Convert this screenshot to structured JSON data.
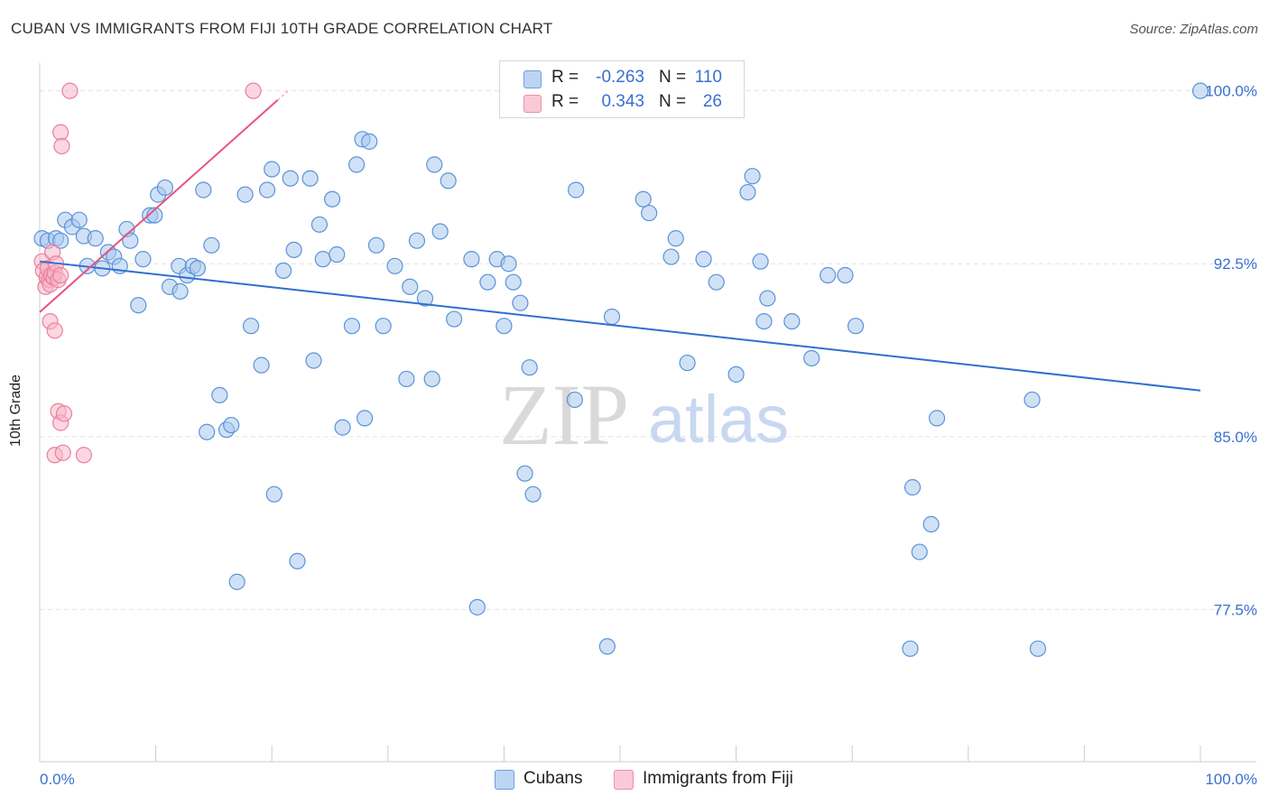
{
  "title": "CUBAN VS IMMIGRANTS FROM FIJI 10TH GRADE CORRELATION CHART",
  "source": "Source: ZipAtlas.com",
  "legend": {
    "cubans": {
      "r_label": "R =",
      "r_value": "-0.263",
      "n_label": "N =",
      "n_value": "110"
    },
    "fiji": {
      "r_label": "R =",
      "r_value": "0.343",
      "n_label": "N =",
      "n_value": "26"
    }
  },
  "bottom_legend": {
    "cubans": "Cubans",
    "fiji": "Immigrants from Fiji"
  },
  "watermark": {
    "zip": "ZIP",
    "atlas": "atlas"
  },
  "colors": {
    "cubans_fill": "#a9c8ef",
    "cubans_stroke": "#5b93d9",
    "cubans_line": "#2f6fcf",
    "fiji_fill": "#f7b6c8",
    "fiji_stroke": "#ea7fa0",
    "fiji_line": "#e8537f",
    "tick_text": "#3a6fd0",
    "grid": "#e3e3e3"
  },
  "chart_data": {
    "type": "scatter",
    "title": "CUBAN VS IMMIGRANTS FROM FIJI 10TH GRADE CORRELATION CHART",
    "xlabel": "",
    "ylabel": "10th Grade",
    "xlim": [
      0,
      100
    ],
    "ylim": [
      70.9,
      101.2
    ],
    "x_tick_labels": [
      "0.0%",
      "100.0%"
    ],
    "y_ticks": [
      77.5,
      85.0,
      92.5,
      100.0
    ],
    "y_tick_labels": [
      "77.5%",
      "85.0%",
      "92.5%",
      "100.0%"
    ],
    "grid": true,
    "legend_position": "top-center",
    "series": [
      {
        "name": "Cubans",
        "r": -0.263,
        "n": 110,
        "trend": {
          "x": [
            0,
            100
          ],
          "y": [
            92.6,
            87.0
          ]
        },
        "points": [
          [
            0.2,
            93.6
          ],
          [
            0.7,
            93.5
          ],
          [
            1.4,
            93.6
          ],
          [
            1.8,
            93.5
          ],
          [
            2.2,
            94.4
          ],
          [
            2.8,
            94.1
          ],
          [
            3.4,
            94.4
          ],
          [
            3.8,
            93.7
          ],
          [
            4.1,
            92.4
          ],
          [
            4.8,
            93.6
          ],
          [
            5.4,
            92.3
          ],
          [
            5.9,
            93.0
          ],
          [
            6.4,
            92.8
          ],
          [
            6.9,
            92.4
          ],
          [
            7.5,
            94.0
          ],
          [
            7.8,
            93.5
          ],
          [
            8.5,
            90.7
          ],
          [
            8.9,
            92.7
          ],
          [
            9.5,
            94.6
          ],
          [
            9.9,
            94.6
          ],
          [
            10.2,
            95.5
          ],
          [
            10.8,
            95.8
          ],
          [
            11.2,
            91.5
          ],
          [
            12.1,
            91.3
          ],
          [
            12.0,
            92.4
          ],
          [
            12.7,
            92.0
          ],
          [
            13.2,
            92.4
          ],
          [
            13.6,
            92.3
          ],
          [
            14.1,
            95.7
          ],
          [
            14.8,
            93.3
          ],
          [
            15.5,
            86.8
          ],
          [
            14.4,
            85.2
          ],
          [
            16.1,
            85.3
          ],
          [
            16.5,
            85.5
          ],
          [
            17.0,
            78.7
          ],
          [
            17.7,
            95.5
          ],
          [
            18.2,
            89.8
          ],
          [
            19.1,
            88.1
          ],
          [
            19.6,
            95.7
          ],
          [
            20.0,
            96.6
          ],
          [
            20.2,
            82.5
          ],
          [
            21.0,
            92.2
          ],
          [
            21.6,
            96.2
          ],
          [
            21.9,
            93.1
          ],
          [
            22.2,
            79.6
          ],
          [
            23.3,
            96.2
          ],
          [
            23.6,
            88.3
          ],
          [
            24.1,
            94.2
          ],
          [
            24.4,
            92.7
          ],
          [
            25.2,
            95.3
          ],
          [
            25.6,
            92.9
          ],
          [
            26.1,
            85.4
          ],
          [
            26.9,
            89.8
          ],
          [
            27.3,
            96.8
          ],
          [
            27.8,
            97.9
          ],
          [
            28.0,
            85.8
          ],
          [
            28.4,
            97.8
          ],
          [
            29.0,
            93.3
          ],
          [
            29.6,
            89.8
          ],
          [
            30.6,
            92.4
          ],
          [
            31.6,
            87.5
          ],
          [
            31.9,
            91.5
          ],
          [
            32.5,
            93.5
          ],
          [
            33.2,
            91.0
          ],
          [
            33.8,
            87.5
          ],
          [
            34.0,
            96.8
          ],
          [
            34.5,
            93.9
          ],
          [
            35.2,
            96.1
          ],
          [
            35.7,
            90.1
          ],
          [
            37.2,
            92.7
          ],
          [
            37.7,
            77.6
          ],
          [
            38.6,
            91.7
          ],
          [
            39.4,
            92.7
          ],
          [
            40.0,
            89.8
          ],
          [
            40.4,
            92.5
          ],
          [
            40.8,
            91.7
          ],
          [
            41.4,
            90.8
          ],
          [
            41.8,
            83.4
          ],
          [
            42.2,
            88.0
          ],
          [
            42.5,
            82.5
          ],
          [
            46.1,
            86.6
          ],
          [
            46.2,
            95.7
          ],
          [
            48.9,
            75.9
          ],
          [
            49.3,
            90.2
          ],
          [
            52.0,
            95.3
          ],
          [
            52.5,
            94.7
          ],
          [
            54.4,
            92.8
          ],
          [
            54.8,
            93.6
          ],
          [
            55.8,
            88.2
          ],
          [
            57.2,
            92.7
          ],
          [
            58.3,
            91.7
          ],
          [
            60.0,
            87.7
          ],
          [
            61.0,
            95.6
          ],
          [
            61.4,
            96.3
          ],
          [
            62.1,
            92.6
          ],
          [
            62.4,
            90.0
          ],
          [
            62.7,
            91.0
          ],
          [
            64.8,
            90.0
          ],
          [
            66.5,
            88.4
          ],
          [
            67.9,
            92.0
          ],
          [
            69.4,
            92.0
          ],
          [
            70.3,
            89.8
          ],
          [
            75.2,
            82.8
          ],
          [
            75.0,
            75.8
          ],
          [
            75.8,
            80.0
          ],
          [
            76.8,
            81.2
          ],
          [
            77.3,
            85.8
          ],
          [
            85.5,
            86.6
          ],
          [
            86.0,
            75.8
          ],
          [
            100.0,
            100.0
          ]
        ]
      },
      {
        "name": "Immigrants from Fiji",
        "r": 0.343,
        "n": 26,
        "trend": {
          "x": [
            0,
            20.5
          ],
          "y": [
            90.4,
            99.6
          ]
        },
        "points": [
          [
            0.2,
            92.6
          ],
          [
            0.3,
            92.2
          ],
          [
            0.5,
            91.5
          ],
          [
            0.6,
            91.9
          ],
          [
            0.7,
            92.3
          ],
          [
            0.8,
            91.8
          ],
          [
            0.9,
            91.6
          ],
          [
            1.0,
            92.0
          ],
          [
            1.1,
            93.0
          ],
          [
            1.2,
            91.9
          ],
          [
            1.3,
            92.1
          ],
          [
            1.4,
            92.5
          ],
          [
            1.6,
            91.8
          ],
          [
            1.8,
            92.0
          ],
          [
            0.9,
            90.0
          ],
          [
            1.3,
            89.6
          ],
          [
            1.6,
            86.1
          ],
          [
            1.8,
            85.6
          ],
          [
            2.1,
            86.0
          ],
          [
            1.3,
            84.2
          ],
          [
            2.0,
            84.3
          ],
          [
            3.8,
            84.2
          ],
          [
            1.8,
            98.2
          ],
          [
            1.9,
            97.6
          ],
          [
            2.6,
            100.0
          ],
          [
            18.4,
            100.0
          ]
        ]
      }
    ]
  }
}
